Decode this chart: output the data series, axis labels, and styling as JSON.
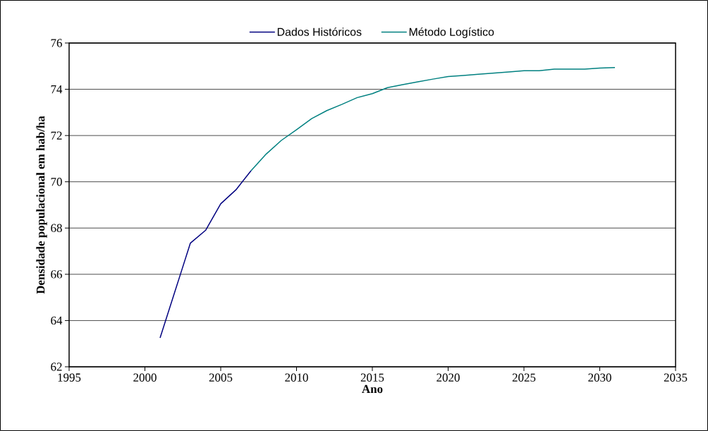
{
  "chart_data": {
    "type": "line",
    "xlabel": "Ano",
    "ylabel": "Densidade populacional em hab/ha",
    "series": [
      {
        "name": "Dados Históricos",
        "color": "#000080",
        "x": [
          2001,
          2002,
          2003,
          2004,
          2005,
          2006,
          2007
        ],
        "values": [
          63.25,
          65.3,
          67.35,
          67.9,
          69.05,
          69.65,
          70.48
        ]
      },
      {
        "name": "Método Logístico",
        "color": "#008080",
        "x": [
          2007,
          2008,
          2009,
          2010,
          2011,
          2012,
          2013,
          2014,
          2015,
          2016,
          2017,
          2018,
          2019,
          2020,
          2021,
          2022,
          2023,
          2024,
          2025,
          2026,
          2027,
          2028,
          2029,
          2030,
          2031
        ],
        "values": [
          70.48,
          71.2,
          71.79,
          72.25,
          72.73,
          73.08,
          73.35,
          73.64,
          73.81,
          74.07,
          74.2,
          74.32,
          74.44,
          74.55,
          74.6,
          74.65,
          74.7,
          74.75,
          74.8,
          74.8,
          74.87,
          74.87,
          74.87,
          74.92,
          74.94
        ]
      }
    ],
    "xlim": [
      1995,
      2035
    ],
    "xticks": [
      1995,
      2000,
      2005,
      2010,
      2015,
      2020,
      2025,
      2030,
      2035
    ],
    "ylim": [
      62,
      76
    ],
    "yticks": [
      62,
      64,
      66,
      68,
      70,
      72,
      74,
      76
    ],
    "grid": "y",
    "legend": "top",
    "marker": "none",
    "line_style": "solid"
  }
}
